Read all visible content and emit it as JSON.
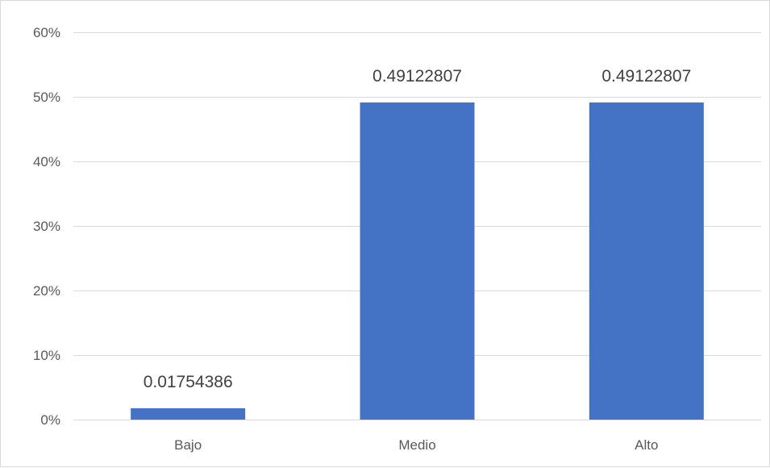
{
  "chart_data": {
    "type": "bar",
    "categories": [
      "Bajo",
      "Medio",
      "Alto"
    ],
    "values": [
      0.01754386,
      0.49122807,
      0.49122807
    ],
    "data_labels": [
      "0.01754386",
      "0.49122807",
      "0.49122807"
    ],
    "title": "",
    "xlabel": "",
    "ylabel": "",
    "ylim": [
      0,
      0.6
    ],
    "yticks": [
      0,
      0.1,
      0.2,
      0.3,
      0.4,
      0.5,
      0.6
    ],
    "ytick_labels": [
      "0%",
      "10%",
      "20%",
      "30%",
      "40%",
      "50%",
      "60%"
    ],
    "grid": true,
    "legend": "none",
    "bar_color": "#4472C4"
  }
}
